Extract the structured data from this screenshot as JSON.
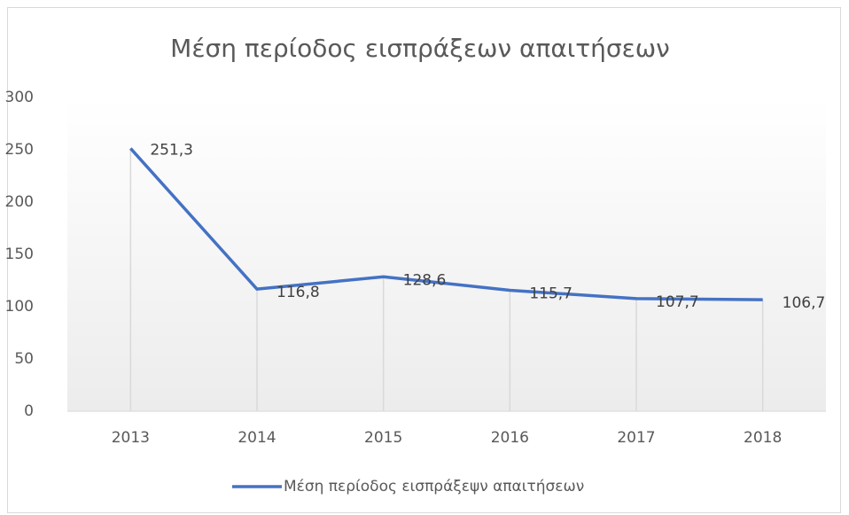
{
  "chart_data": {
    "type": "line",
    "title": "Μέση περίοδος εισπράξεων απαιτήσεων",
    "categories": [
      "2013",
      "2014",
      "2015",
      "2016",
      "2017",
      "2018"
    ],
    "series": [
      {
        "name": "Μέση περίοδος εισπράξεψν απαιτήσεων",
        "color": "#4472c4",
        "values": [
          251.3,
          116.8,
          128.6,
          115.7,
          107.7,
          106.7
        ],
        "value_labels": [
          "251,3",
          "116,8",
          "128,6",
          "115,7",
          "107,7",
          "106,7"
        ]
      }
    ],
    "ylim": [
      0,
      300
    ],
    "yticks": [
      0,
      50,
      100,
      150,
      200,
      250,
      300
    ],
    "legend": "bottom"
  }
}
